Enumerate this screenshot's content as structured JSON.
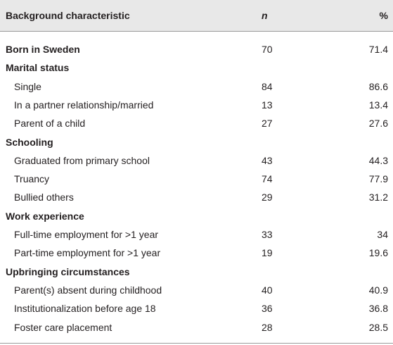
{
  "table": {
    "header": [
      "Background characteristic",
      "n",
      "%"
    ],
    "rows": [
      {
        "label": "Born in Sweden",
        "n": 70,
        "percent": 71.4,
        "level": 0
      },
      {
        "label": "Marital status",
        "level": 0
      },
      {
        "label": "Single",
        "n": 84,
        "percent": 86.6,
        "level": 1
      },
      {
        "label": "In a partner relationship/married",
        "n": 13,
        "percent": 13.4,
        "level": 1
      },
      {
        "label": "Parent of a child",
        "n": 27,
        "percent": 27.6,
        "level": 1
      },
      {
        "label": "Schooling",
        "level": 0
      },
      {
        "label": "Graduated from primary school",
        "n": 43,
        "percent": 44.3,
        "level": 1
      },
      {
        "label": "Truancy",
        "n": 74,
        "percent": 77.9,
        "level": 1
      },
      {
        "label": "Bullied others",
        "n": 29,
        "percent": 31.2,
        "level": 1
      },
      {
        "label": "Work experience",
        "level": 0
      },
      {
        "label": "Full-time employment for >1 year",
        "n": 33,
        "percent": 34,
        "level": 1
      },
      {
        "label": "Part-time employment for >1 year",
        "n": 19,
        "percent": 19.6,
        "level": 1
      },
      {
        "label": "Upbringing circumstances",
        "level": 0
      },
      {
        "label": "Parent(s) absent during childhood",
        "n": 40,
        "percent": 40.9,
        "level": 1
      },
      {
        "label": "Institutionalization before age 18",
        "n": 36,
        "percent": 36.8,
        "level": 1
      },
      {
        "label": "Foster care placement",
        "n": 28,
        "percent": 28.5,
        "level": 1
      }
    ]
  }
}
